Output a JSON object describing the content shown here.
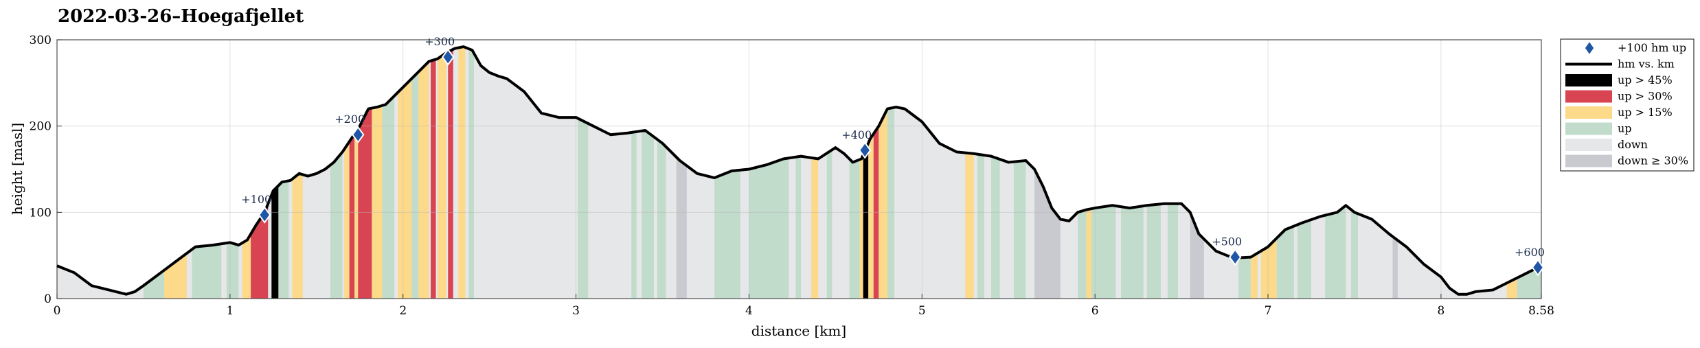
{
  "chart_data": {
    "type": "area",
    "title": "2022-03-26–Hoegafjellet",
    "xlabel": "distance [km]",
    "ylabel": "height [masl]",
    "xlim": [
      0,
      8.58
    ],
    "ylim": [
      0,
      300
    ],
    "xticks": [
      "0",
      "1",
      "2",
      "3",
      "4",
      "5",
      "6",
      "7",
      "8",
      "8.58"
    ],
    "xtick_values": [
      0,
      1,
      2,
      3,
      4,
      5,
      6,
      7,
      8,
      8.58
    ],
    "yticks": [
      "0",
      "100",
      "200",
      "300"
    ],
    "ytick_values": [
      0,
      100,
      200,
      300
    ],
    "grid": true,
    "legend_position": "outside-right",
    "colors": {
      "up45": "#000000",
      "up30": "#d94452",
      "up15": "#fdd98a",
      "up": "#c1dccb",
      "down": "#e6e7e9",
      "down30": "#c8cad0",
      "line": "#000000",
      "marker": "#1f57a6"
    },
    "legend": [
      {
        "key": "marker",
        "label": "+100 hm up"
      },
      {
        "key": "line",
        "label": "hm vs. km"
      },
      {
        "key": "up45",
        "label": "up > 45%"
      },
      {
        "key": "up30",
        "label": "up > 30%"
      },
      {
        "key": "up15",
        "label": "up > 15%"
      },
      {
        "key": "up",
        "label": "up"
      },
      {
        "key": "down",
        "label": "down"
      },
      {
        "key": "down30",
        "label": "down ≥ 30%"
      }
    ],
    "profile": {
      "x": [
        0,
        0.1,
        0.2,
        0.3,
        0.4,
        0.45,
        0.5,
        0.6,
        0.7,
        0.8,
        0.9,
        1.0,
        1.05,
        1.1,
        1.15,
        1.2,
        1.25,
        1.3,
        1.35,
        1.4,
        1.45,
        1.5,
        1.55,
        1.6,
        1.65,
        1.7,
        1.75,
        1.8,
        1.85,
        1.9,
        1.95,
        2.0,
        2.05,
        2.1,
        2.15,
        2.2,
        2.25,
        2.3,
        2.35,
        2.4,
        2.45,
        2.5,
        2.55,
        2.6,
        2.7,
        2.8,
        2.9,
        3.0,
        3.1,
        3.2,
        3.3,
        3.4,
        3.5,
        3.6,
        3.7,
        3.8,
        3.9,
        4.0,
        4.1,
        4.2,
        4.3,
        4.4,
        4.5,
        4.55,
        4.6,
        4.65,
        4.7,
        4.75,
        4.8,
        4.85,
        4.9,
        5.0,
        5.1,
        5.2,
        5.3,
        5.4,
        5.5,
        5.6,
        5.65,
        5.7,
        5.75,
        5.8,
        5.85,
        5.9,
        5.95,
        6.0,
        6.1,
        6.2,
        6.3,
        6.4,
        6.5,
        6.55,
        6.6,
        6.7,
        6.8,
        6.9,
        7.0,
        7.1,
        7.2,
        7.3,
        7.4,
        7.45,
        7.5,
        7.6,
        7.7,
        7.8,
        7.9,
        8.0,
        8.05,
        8.1,
        8.15,
        8.2,
        8.3,
        8.4,
        8.5,
        8.58
      ],
      "y": [
        38,
        30,
        15,
        10,
        5,
        8,
        15,
        30,
        45,
        60,
        62,
        65,
        62,
        68,
        85,
        100,
        125,
        135,
        137,
        145,
        142,
        145,
        150,
        158,
        170,
        185,
        200,
        220,
        222,
        225,
        235,
        245,
        255,
        265,
        275,
        278,
        285,
        290,
        292,
        288,
        270,
        262,
        258,
        255,
        240,
        215,
        210,
        210,
        200,
        190,
        192,
        195,
        180,
        160,
        145,
        140,
        148,
        150,
        155,
        162,
        165,
        162,
        175,
        168,
        158,
        162,
        185,
        200,
        220,
        222,
        220,
        205,
        180,
        170,
        168,
        165,
        158,
        160,
        150,
        130,
        105,
        92,
        90,
        100,
        103,
        105,
        108,
        105,
        108,
        110,
        110,
        100,
        75,
        55,
        47,
        48,
        60,
        80,
        88,
        95,
        100,
        108,
        100,
        92,
        75,
        60,
        40,
        25,
        12,
        5,
        5,
        8,
        10,
        20,
        30,
        38
      ]
    },
    "segments": [
      {
        "from": 0.5,
        "to": 0.62,
        "c": "up"
      },
      {
        "from": 0.62,
        "to": 0.75,
        "c": "up15"
      },
      {
        "from": 0.78,
        "to": 0.95,
        "c": "up"
      },
      {
        "from": 0.98,
        "to": 1.05,
        "c": "up"
      },
      {
        "from": 1.07,
        "to": 1.12,
        "c": "up15"
      },
      {
        "from": 1.12,
        "to": 1.22,
        "c": "up30"
      },
      {
        "from": 1.24,
        "to": 1.28,
        "c": "up45"
      },
      {
        "from": 1.28,
        "to": 1.34,
        "c": "up"
      },
      {
        "from": 1.36,
        "to": 1.42,
        "c": "up15"
      },
      {
        "from": 1.58,
        "to": 1.65,
        "c": "up"
      },
      {
        "from": 1.66,
        "to": 1.69,
        "c": "up15"
      },
      {
        "from": 1.69,
        "to": 1.72,
        "c": "up30"
      },
      {
        "from": 1.72,
        "to": 1.74,
        "c": "up15"
      },
      {
        "from": 1.74,
        "to": 1.82,
        "c": "up30"
      },
      {
        "from": 1.82,
        "to": 1.88,
        "c": "up15"
      },
      {
        "from": 1.88,
        "to": 1.95,
        "c": "up"
      },
      {
        "from": 1.97,
        "to": 2.05,
        "c": "up15"
      },
      {
        "from": 2.05,
        "to": 2.09,
        "c": "up"
      },
      {
        "from": 2.09,
        "to": 2.15,
        "c": "up15"
      },
      {
        "from": 2.16,
        "to": 2.19,
        "c": "up30"
      },
      {
        "from": 2.2,
        "to": 2.25,
        "c": "up15"
      },
      {
        "from": 2.26,
        "to": 2.29,
        "c": "up30"
      },
      {
        "from": 2.32,
        "to": 2.36,
        "c": "up15"
      },
      {
        "from": 2.38,
        "to": 2.41,
        "c": "up"
      },
      {
        "from": 3.01,
        "to": 3.07,
        "c": "up"
      },
      {
        "from": 3.32,
        "to": 3.35,
        "c": "up"
      },
      {
        "from": 3.38,
        "to": 3.45,
        "c": "up"
      },
      {
        "from": 3.47,
        "to": 3.52,
        "c": "up"
      },
      {
        "from": 3.58,
        "to": 3.64,
        "c": "down30"
      },
      {
        "from": 3.8,
        "to": 3.95,
        "c": "up"
      },
      {
        "from": 4.0,
        "to": 4.23,
        "c": "up"
      },
      {
        "from": 4.27,
        "to": 4.3,
        "c": "up"
      },
      {
        "from": 4.36,
        "to": 4.4,
        "c": "up15"
      },
      {
        "from": 4.45,
        "to": 4.48,
        "c": "up"
      },
      {
        "from": 4.58,
        "to": 4.64,
        "c": "up"
      },
      {
        "from": 4.64,
        "to": 4.66,
        "c": "up15"
      },
      {
        "from": 4.66,
        "to": 4.69,
        "c": "up45"
      },
      {
        "from": 4.69,
        "to": 4.72,
        "c": "up15"
      },
      {
        "from": 4.72,
        "to": 4.75,
        "c": "up30"
      },
      {
        "from": 4.75,
        "to": 4.8,
        "c": "up15"
      },
      {
        "from": 4.8,
        "to": 4.84,
        "c": "up"
      },
      {
        "from": 5.25,
        "to": 5.3,
        "c": "up15"
      },
      {
        "from": 5.32,
        "to": 5.36,
        "c": "up"
      },
      {
        "from": 5.4,
        "to": 5.45,
        "c": "up"
      },
      {
        "from": 5.53,
        "to": 5.6,
        "c": "up"
      },
      {
        "from": 5.65,
        "to": 5.8,
        "c": "down30"
      },
      {
        "from": 5.9,
        "to": 5.95,
        "c": "up"
      },
      {
        "from": 5.95,
        "to": 5.98,
        "c": "up15"
      },
      {
        "from": 5.98,
        "to": 6.12,
        "c": "up"
      },
      {
        "from": 6.15,
        "to": 6.28,
        "c": "up"
      },
      {
        "from": 6.3,
        "to": 6.38,
        "c": "up"
      },
      {
        "from": 6.42,
        "to": 6.48,
        "c": "up"
      },
      {
        "from": 6.55,
        "to": 6.63,
        "c": "down30"
      },
      {
        "from": 6.83,
        "to": 6.9,
        "c": "up"
      },
      {
        "from": 6.9,
        "to": 6.94,
        "c": "up15"
      },
      {
        "from": 6.96,
        "to": 7.05,
        "c": "up15"
      },
      {
        "from": 7.05,
        "to": 7.15,
        "c": "up"
      },
      {
        "from": 7.17,
        "to": 7.25,
        "c": "up"
      },
      {
        "from": 7.33,
        "to": 7.45,
        "c": "up"
      },
      {
        "from": 7.48,
        "to": 7.52,
        "c": "up"
      },
      {
        "from": 7.72,
        "to": 7.75,
        "c": "down30"
      },
      {
        "from": 8.38,
        "to": 8.44,
        "c": "up15"
      },
      {
        "from": 8.44,
        "to": 8.58,
        "c": "up"
      }
    ],
    "markers": [
      {
        "x": 1.2,
        "y": 97,
        "label": "+100"
      },
      {
        "x": 1.74,
        "y": 190,
        "label": "+200"
      },
      {
        "x": 2.26,
        "y": 280,
        "label": "+300"
      },
      {
        "x": 4.67,
        "y": 172,
        "label": "+400"
      },
      {
        "x": 6.81,
        "y": 48,
        "label": "+500"
      },
      {
        "x": 8.56,
        "y": 36,
        "label": "+600"
      }
    ]
  }
}
